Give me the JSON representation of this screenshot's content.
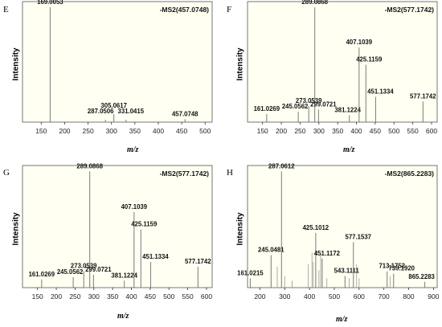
{
  "chart_data": [
    {
      "type": "bar",
      "panel": "E",
      "annotation": "-MS2(457.0748)",
      "ylabel": "Intensity",
      "xlabel": "m/z",
      "xlim": [
        110,
        515
      ],
      "ylim": [
        0,
        105
      ],
      "xticks": [
        150,
        200,
        250,
        300,
        350,
        400,
        450,
        500
      ],
      "peaks": [
        {
          "mz": 169.0053,
          "intensity": 100,
          "label": "169.0053"
        },
        {
          "mz": 287.0506,
          "intensity": 2,
          "label": "287.0506"
        },
        {
          "mz": 305.0617,
          "intensity": 7,
          "label": "305.0617"
        },
        {
          "mz": 331.0415,
          "intensity": 2,
          "label": "331.0415"
        },
        {
          "mz": 457.0748,
          "intensity": 2.5,
          "label": "457.0748"
        }
      ]
    },
    {
      "type": "bar",
      "panel": "F",
      "annotation": "-MS2(577.1742)",
      "ylabel": "Intensity",
      "xlabel": "m/z",
      "xlim": [
        110,
        615
      ],
      "ylim": [
        0,
        105
      ],
      "xticks": [
        150,
        200,
        250,
        300,
        350,
        400,
        450,
        500,
        550,
        600
      ],
      "peaks": [
        {
          "mz": 161.0269,
          "intensity": 7,
          "label": "161.0269"
        },
        {
          "mz": 245.0562,
          "intensity": 9,
          "label": "245.0562"
        },
        {
          "mz": 273.0539,
          "intensity": 14,
          "label": "273.0539"
        },
        {
          "mz": 289.0868,
          "intensity": 100,
          "label": "289.0868"
        },
        {
          "mz": 299.0721,
          "intensity": 11,
          "label": "299.0721"
        },
        {
          "mz": 381.1224,
          "intensity": 6,
          "label": "381.1224"
        },
        {
          "mz": 407.1039,
          "intensity": 65,
          "label": "407.1039"
        },
        {
          "mz": 425.1159,
          "intensity": 50,
          "label": "425.1159"
        },
        {
          "mz": 451.1334,
          "intensity": 22,
          "label": "451.1334"
        },
        {
          "mz": 577.1742,
          "intensity": 18,
          "label": "577.1742"
        }
      ]
    },
    {
      "type": "bar",
      "panel": "G",
      "annotation": "-MS2(577.1742)",
      "ylabel": "Intensity",
      "xlabel": "m/z",
      "xlim": [
        110,
        615
      ],
      "ylim": [
        0,
        105
      ],
      "xticks": [
        150,
        200,
        250,
        300,
        350,
        400,
        450,
        500,
        550,
        600
      ],
      "peaks": [
        {
          "mz": 161.0269,
          "intensity": 7,
          "label": "161.0269"
        },
        {
          "mz": 245.0562,
          "intensity": 9,
          "label": "245.0562"
        },
        {
          "mz": 273.0539,
          "intensity": 14,
          "label": "273.0539"
        },
        {
          "mz": 289.0868,
          "intensity": 100,
          "label": "289.0868"
        },
        {
          "mz": 299.0721,
          "intensity": 11,
          "label": "299.0721"
        },
        {
          "mz": 381.1224,
          "intensity": 6,
          "label": "381.1224"
        },
        {
          "mz": 407.1039,
          "intensity": 65,
          "label": "407.1039"
        },
        {
          "mz": 425.1159,
          "intensity": 50,
          "label": "425.1159"
        },
        {
          "mz": 451.1334,
          "intensity": 22,
          "label": "451.1334"
        },
        {
          "mz": 577.1742,
          "intensity": 18,
          "label": "577.1742"
        }
      ]
    },
    {
      "type": "bar",
      "panel": "H",
      "annotation": "-MS2(865.2283)",
      "ylabel": "Intensity",
      "xlabel": "m/z",
      "xlim": [
        150,
        915
      ],
      "ylim": [
        0,
        105
      ],
      "xticks": [
        200,
        300,
        400,
        500,
        600,
        700,
        800,
        900
      ],
      "peaks": [
        {
          "mz": 161.0215,
          "intensity": 8,
          "label": "161.0215"
        },
        {
          "mz": 245.0481,
          "intensity": 28,
          "label": "245.0481"
        },
        {
          "mz": 287.0612,
          "intensity": 100,
          "label": "287.0612"
        },
        {
          "mz": 425.1012,
          "intensity": 47,
          "label": "425.1012"
        },
        {
          "mz": 451.1172,
          "intensity": 25,
          "label": "451.1172"
        },
        {
          "mz": 543.1111,
          "intensity": 10,
          "label": "543.1111"
        },
        {
          "mz": 577.1537,
          "intensity": 39,
          "label": "577.1537"
        },
        {
          "mz": 713.1752,
          "intensity": 14,
          "label": "713.1752"
        },
        {
          "mz": 739.192,
          "intensity": 12,
          "label": "739.1920"
        },
        {
          "mz": 865.2283,
          "intensity": 5,
          "label": "865.2283"
        }
      ],
      "minor_peaks": [
        {
          "mz": 270,
          "intensity": 18
        },
        {
          "mz": 300,
          "intensity": 10
        },
        {
          "mz": 330,
          "intensity": 6
        },
        {
          "mz": 395,
          "intensity": 20
        },
        {
          "mz": 410,
          "intensity": 30
        },
        {
          "mz": 415,
          "intensity": 22
        },
        {
          "mz": 438,
          "intensity": 15
        },
        {
          "mz": 445,
          "intensity": 30
        },
        {
          "mz": 470,
          "intensity": 8
        },
        {
          "mz": 560,
          "intensity": 8
        },
        {
          "mz": 590,
          "intensity": 20
        },
        {
          "mz": 600,
          "intensity": 8
        },
        {
          "mz": 725,
          "intensity": 10
        }
      ]
    }
  ]
}
